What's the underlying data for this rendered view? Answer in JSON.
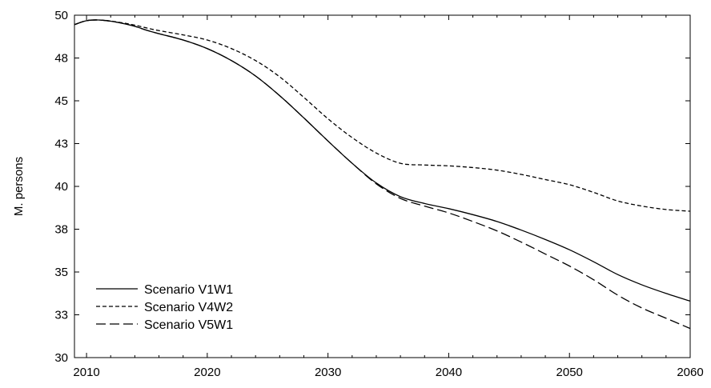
{
  "chart_data": {
    "type": "line",
    "title": "",
    "xlabel": "",
    "ylabel": "M. persons",
    "xlim": [
      2009,
      2060
    ],
    "ylim": [
      30,
      50
    ],
    "x_ticks": [
      2010,
      2020,
      2030,
      2040,
      2050,
      2060
    ],
    "y_ticks": [
      30,
      32.5,
      35,
      37.5,
      40,
      42.5,
      45,
      47.5,
      50
    ],
    "y_tick_labels": [
      "30",
      "33",
      "35",
      "38",
      "40",
      "43",
      "45",
      "48",
      "50"
    ],
    "grid": false,
    "legend_position": "bottom-left",
    "series": [
      {
        "name": "Scenario V1W1",
        "style": "solid",
        "color": "#000000",
        "x": [
          2009,
          2010,
          2011,
          2012,
          2013,
          2014,
          2015,
          2016,
          2018,
          2020,
          2022,
          2024,
          2026,
          2028,
          2030,
          2032,
          2034,
          2036,
          2038,
          2040,
          2042,
          2044,
          2046,
          2048,
          2050,
          2052,
          2054,
          2056,
          2058,
          2060
        ],
        "y": [
          49.45,
          49.68,
          49.72,
          49.65,
          49.52,
          49.35,
          49.12,
          48.92,
          48.55,
          48.05,
          47.35,
          46.45,
          45.3,
          44.0,
          42.65,
          41.35,
          40.2,
          39.4,
          39.0,
          38.7,
          38.35,
          37.95,
          37.45,
          36.9,
          36.3,
          35.6,
          34.85,
          34.25,
          33.75,
          33.3
        ]
      },
      {
        "name": "Scenario V4W2",
        "style": "dashed",
        "color": "#000000",
        "x": [
          2009,
          2010,
          2011,
          2012,
          2013,
          2014,
          2015,
          2016,
          2018,
          2020,
          2022,
          2024,
          2026,
          2028,
          2030,
          2032,
          2034,
          2036,
          2038,
          2040,
          2042,
          2044,
          2046,
          2048,
          2050,
          2052,
          2054,
          2056,
          2058,
          2060
        ],
        "y": [
          49.45,
          49.68,
          49.72,
          49.66,
          49.55,
          49.42,
          49.25,
          49.1,
          48.85,
          48.55,
          48.05,
          47.35,
          46.4,
          45.2,
          43.95,
          42.85,
          41.95,
          41.35,
          41.25,
          41.2,
          41.1,
          40.95,
          40.7,
          40.4,
          40.1,
          39.65,
          39.15,
          38.85,
          38.65,
          38.55
        ]
      },
      {
        "name": "Scenario V5W1",
        "style": "longdash",
        "color": "#000000",
        "x": [
          2009,
          2010,
          2011,
          2012,
          2013,
          2014,
          2015,
          2016,
          2018,
          2020,
          2022,
          2024,
          2026,
          2028,
          2030,
          2032,
          2034,
          2036,
          2038,
          2040,
          2042,
          2044,
          2046,
          2048,
          2050,
          2052,
          2054,
          2056,
          2058,
          2060
        ],
        "y": [
          49.45,
          49.68,
          49.72,
          49.65,
          49.52,
          49.35,
          49.12,
          48.92,
          48.55,
          48.05,
          47.35,
          46.45,
          45.3,
          44.0,
          42.65,
          41.35,
          40.15,
          39.3,
          38.85,
          38.45,
          37.95,
          37.4,
          36.75,
          36.05,
          35.35,
          34.55,
          33.65,
          32.9,
          32.3,
          31.7
        ]
      }
    ]
  }
}
